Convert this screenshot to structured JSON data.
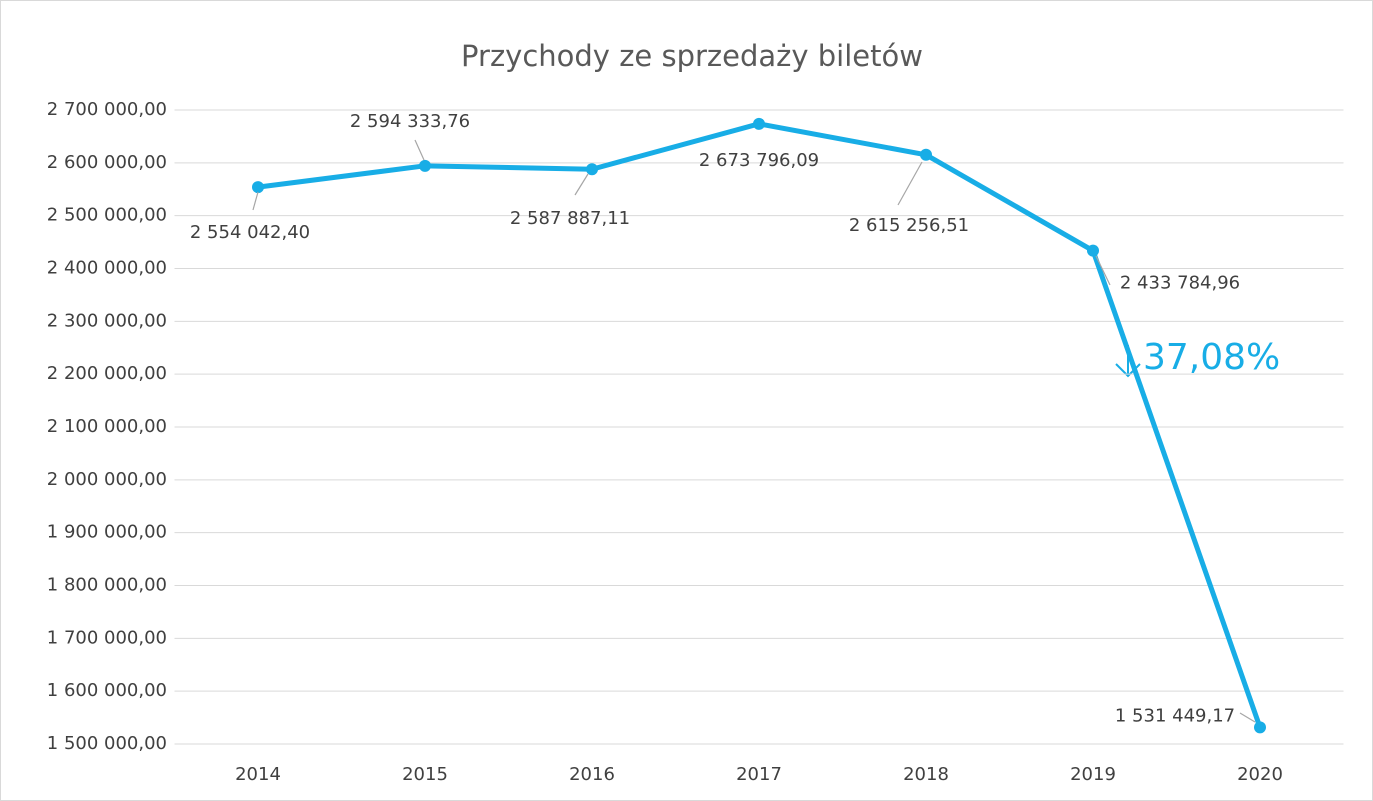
{
  "chart_data": {
    "type": "line",
    "title": "Przychody ze sprzedaży biletów",
    "categories": [
      "2014",
      "2015",
      "2016",
      "2017",
      "2018",
      "2019",
      "2020"
    ],
    "series": [
      {
        "color": "#18ade6",
        "values": [
          2554042.4,
          2594333.76,
          2587887.11,
          2673796.09,
          2615256.51,
          2433784.96,
          1531449.17
        ],
        "value_labels": [
          "2 554 042,40",
          "2 594 333,76",
          "2 587 887,11",
          "2 673 796,09",
          "2 615 256,51",
          "2 433 784,96",
          "1 531 449,17"
        ]
      }
    ],
    "ylim": [
      1500000,
      2700000
    ],
    "yticks": [
      {
        "value": 1500000,
        "label": "1 500 000,00"
      },
      {
        "value": 1600000,
        "label": "1 600 000,00"
      },
      {
        "value": 1700000,
        "label": "1 700 000,00"
      },
      {
        "value": 1800000,
        "label": "1 800 000,00"
      },
      {
        "value": 1900000,
        "label": "1 900 000,00"
      },
      {
        "value": 2000000,
        "label": "2 000 000,00"
      },
      {
        "value": 2100000,
        "label": "2 100 000,00"
      },
      {
        "value": 2200000,
        "label": "2 200 000,00"
      },
      {
        "value": 2300000,
        "label": "2 300 000,00"
      },
      {
        "value": 2400000,
        "label": "2 400 000,00"
      },
      {
        "value": 2500000,
        "label": "2 500 000,00"
      },
      {
        "value": 2600000,
        "label": "2 600 000,00"
      },
      {
        "value": 2700000,
        "label": "2 700 000,00"
      }
    ],
    "grid": true,
    "annotation": "37,08%"
  }
}
